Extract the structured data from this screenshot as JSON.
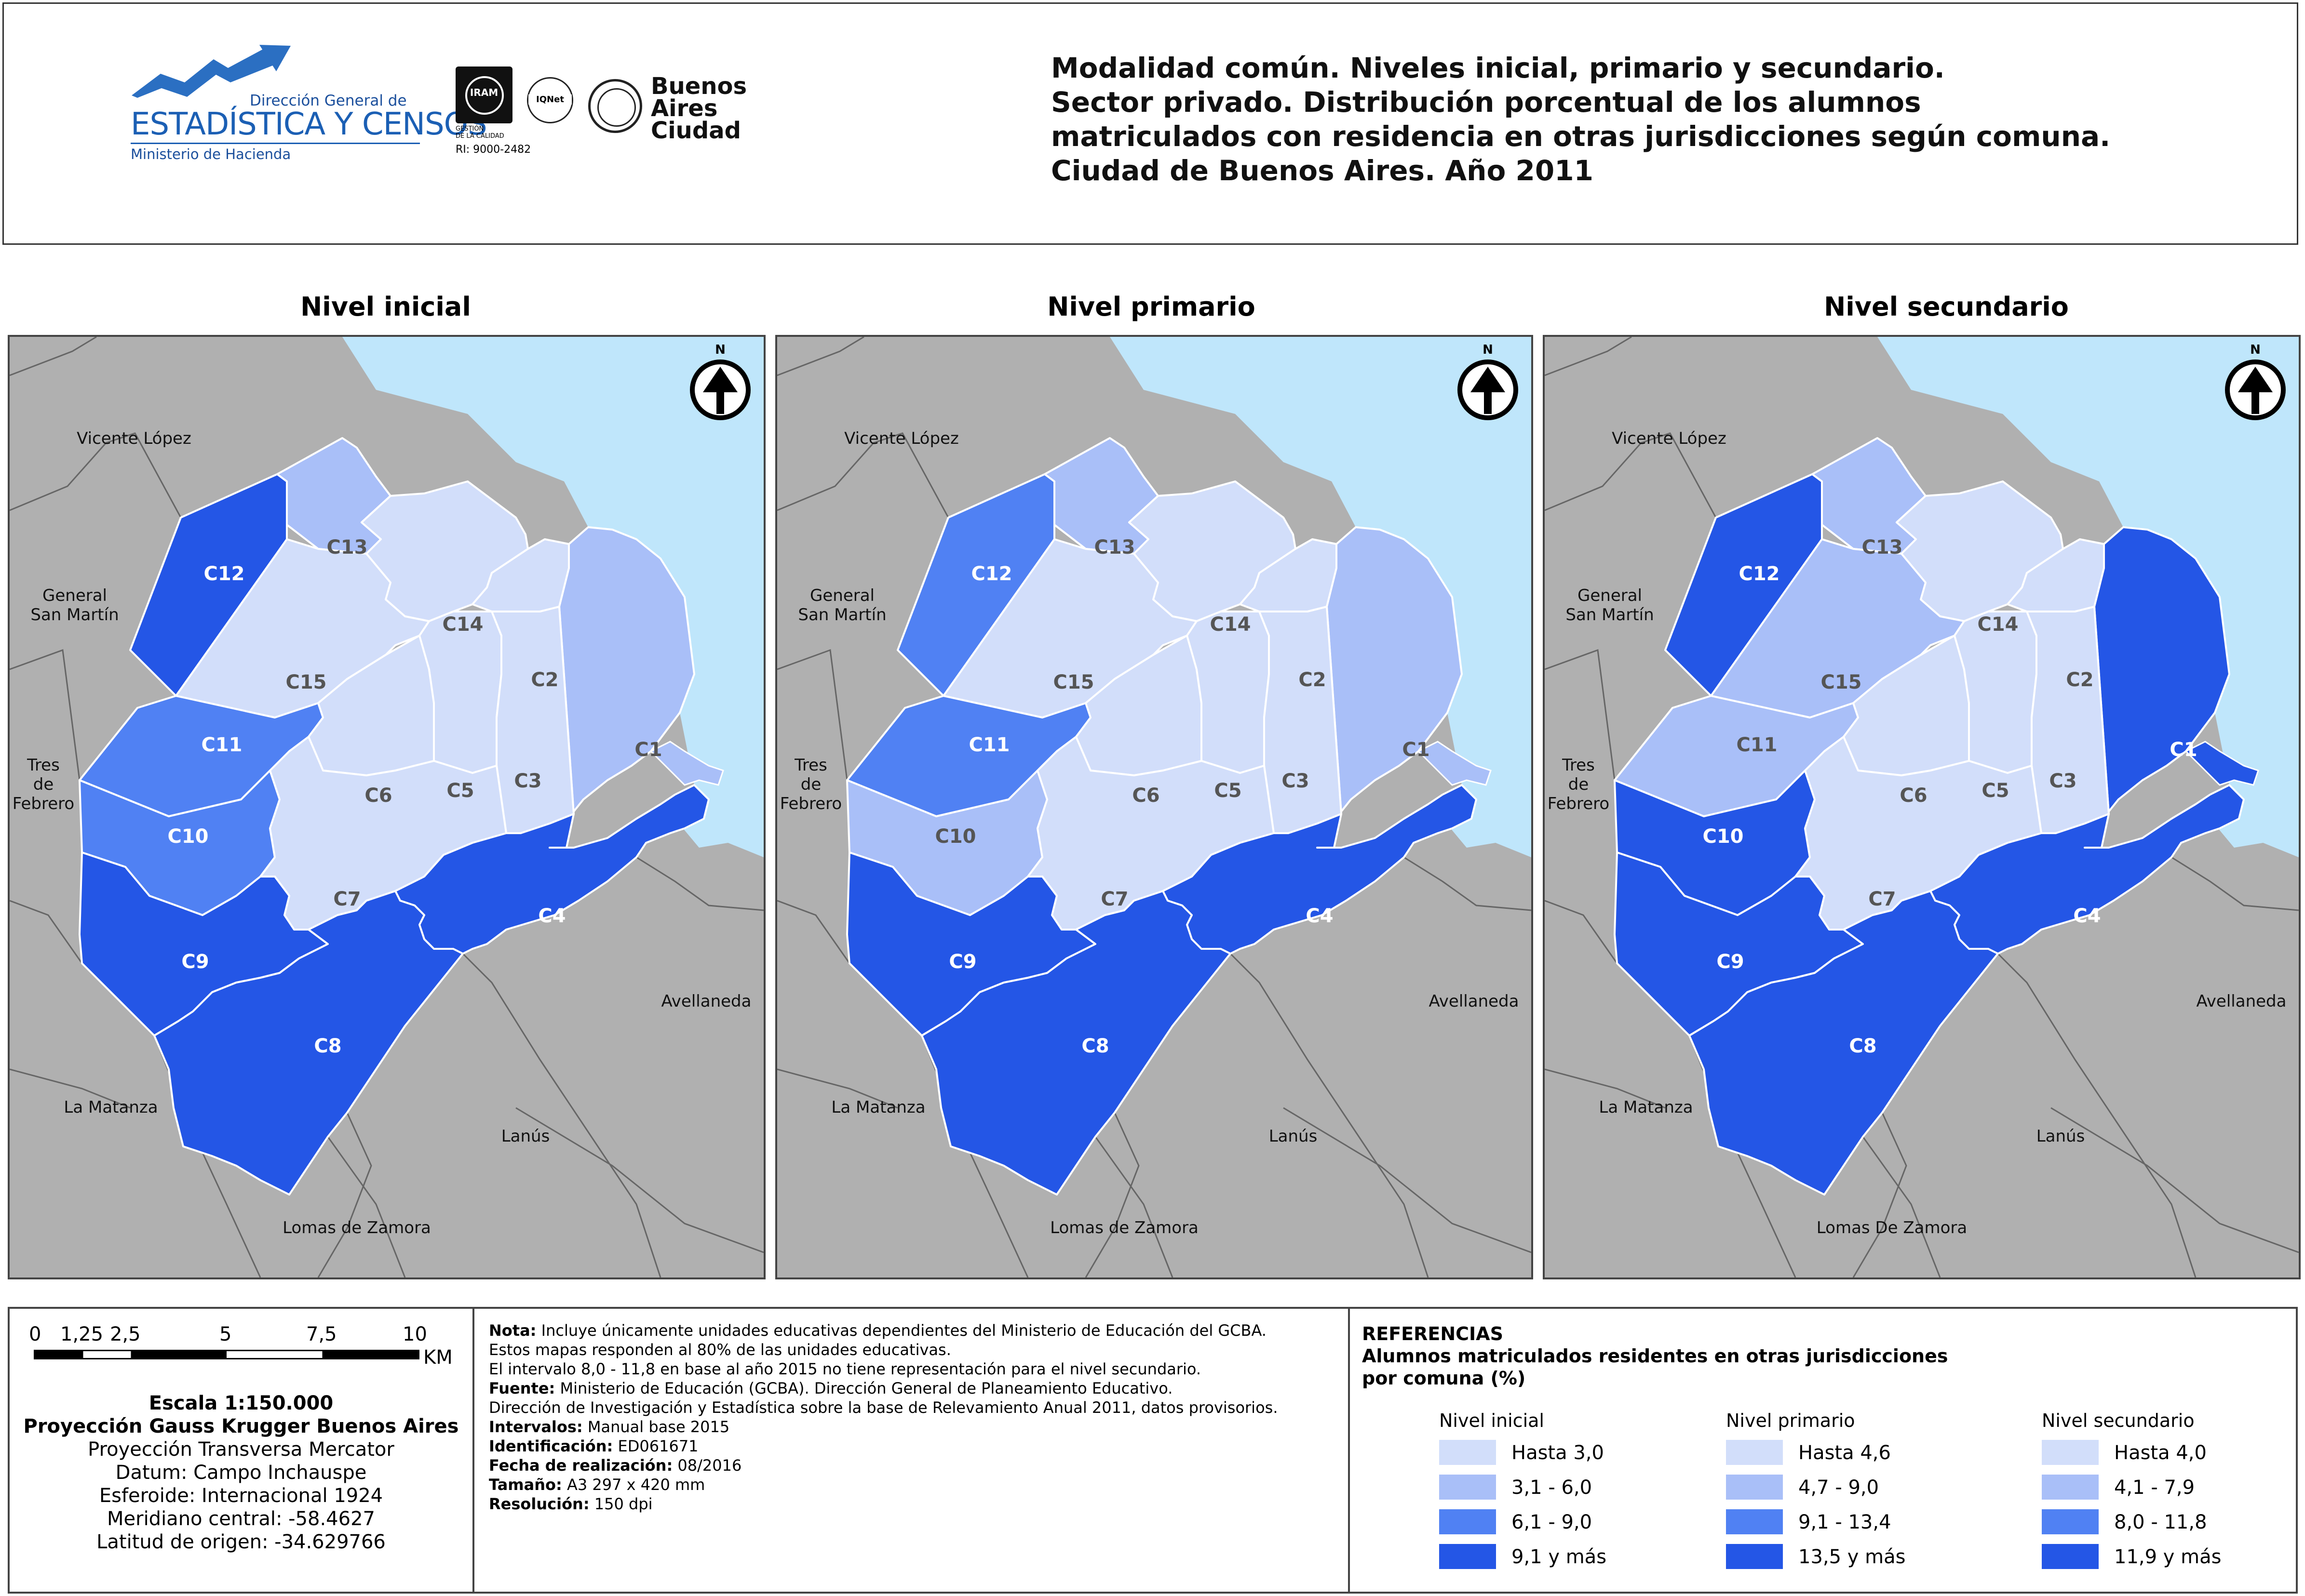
{
  "header": {
    "logo_dgec": {
      "line1": "Dirección General de",
      "line2": "ESTADÍSTICA Y CENSOS",
      "line3": "Ministerio de Hacienda"
    },
    "logo_iram": {
      "name": "IRAM",
      "sub1": "GESTIÓN",
      "sub2": "DE LA CALIDAD",
      "cert": "RI: 9000-2482",
      "iqnet": "IQNet"
    },
    "logo_baires": {
      "line1": "Buenos",
      "line2": "Aires",
      "line3": "Ciudad"
    },
    "title_lines": [
      "Modalidad común. Niveles inicial, primario y secundario.",
      "Sector privado. Distribución porcentual de los alumnos",
      "matriculados con residencia en otras jurisdicciones según comuna.",
      "Ciudad de Buenos Aires. Año 2011"
    ]
  },
  "colors": {
    "class1": "#d2defa",
    "class2": "#a9bff8",
    "class3": "#5081f3",
    "class4": "#2456e6",
    "water": "#bfe6fb",
    "outside": "#b0b0b0"
  },
  "maps": [
    {
      "title": "Nivel inicial",
      "north": "N",
      "neighbors": {
        "vicente_lopez": "Vicente López",
        "san_martin_1": "General",
        "san_martin_2": "San Martín",
        "tres_1": "Tres",
        "tres_2": "de",
        "tres_3": "Febrero",
        "la_matanza": "La Matanza",
        "avellaneda": "Avellaneda",
        "lanus": "Lanús",
        "lomas": "Lomas de Zamora"
      },
      "comunas": {
        "C1": 2,
        "C2": 1,
        "C3": 1,
        "C4": 4,
        "C5": 1,
        "C6": 1,
        "C7": 1,
        "C8": 4,
        "C9": 4,
        "C10": 3,
        "C11": 3,
        "C12": 4,
        "C13": 2,
        "C14": 1,
        "C15": 1
      }
    },
    {
      "title": "Nivel primario",
      "north": "N",
      "neighbors": {
        "vicente_lopez": "Vicente López",
        "san_martin_1": "General",
        "san_martin_2": "San Martín",
        "tres_1": "Tres",
        "tres_2": "de",
        "tres_3": "Febrero",
        "la_matanza": "La Matanza",
        "avellaneda": "Avellaneda",
        "lanus": "Lanús",
        "lomas": "Lomas de Zamora"
      },
      "comunas": {
        "C1": 2,
        "C2": 1,
        "C3": 1,
        "C4": 4,
        "C5": 1,
        "C6": 1,
        "C7": 1,
        "C8": 4,
        "C9": 4,
        "C10": 2,
        "C11": 3,
        "C12": 3,
        "C13": 2,
        "C14": 1,
        "C15": 1
      }
    },
    {
      "title": "Nivel secundario",
      "north": "N",
      "neighbors": {
        "vicente_lopez": "Vicente López",
        "san_martin_1": "General",
        "san_martin_2": "San Martín",
        "tres_1": "Tres",
        "tres_2": "de",
        "tres_3": "Febrero",
        "la_matanza": "La Matanza",
        "avellaneda": "Avellaneda",
        "lanus": "Lanús",
        "lomas": "Lomas De Zamora"
      },
      "comunas": {
        "C1": 4,
        "C2": 1,
        "C3": 1,
        "C4": 4,
        "C5": 1,
        "C6": 1,
        "C7": 1,
        "C8": 4,
        "C9": 4,
        "C10": 4,
        "C11": 2,
        "C12": 4,
        "C13": 2,
        "C14": 1,
        "C15": 2
      }
    }
  ],
  "scale": {
    "ticks": [
      "0",
      "1,25",
      "2,5",
      "5",
      "7,5",
      "10"
    ],
    "unit": "KM",
    "lines": [
      "Escala 1:150.000",
      "Proyección Gauss Krugger Buenos Aires",
      "Proyección Transversa Mercator",
      "Datum: Campo Inchauspe",
      "Esferoide: Internacional 1924",
      "Meridiano central: -58.4627",
      "Latitud de origen: -34.629766"
    ]
  },
  "notes": [
    {
      "label": "Nota:",
      "text": " Incluye únicamente unidades educativas dependientes del Ministerio de Educación del GCBA."
    },
    {
      "label": "",
      "text": "Estos mapas responden al 80% de las unidades educativas."
    },
    {
      "label": "",
      "text": "El intervalo 8,0 - 11,8 en base al año 2015 no tiene representación para el nivel secundario."
    },
    {
      "label": "Fuente:",
      "text": " Ministerio de Educación (GCBA). Dirección General de Planeamiento Educativo."
    },
    {
      "label": "",
      "text": "Dirección de Investigación y Estadística sobre la base de Relevamiento Anual 2011, datos provisorios."
    },
    {
      "label": "Intervalos:",
      "text": " Manual base 2015"
    },
    {
      "label": "Identificación:",
      "text": " ED061671"
    },
    {
      "label": "Fecha de realización:",
      "text": " 08/2016"
    },
    {
      "label": "Tamaño:",
      "text": " A3 297 x 420 mm"
    },
    {
      "label": "Resolución:",
      "text": " 150 dpi"
    }
  ],
  "legend": {
    "heading": "REFERENCIAS",
    "subtitle1": "Alumnos matriculados residentes en otras jurisdicciones",
    "subtitle2": "por comuna (%)",
    "columns": [
      {
        "title": "Nivel inicial",
        "items": [
          "Hasta 3,0",
          "3,1 - 6,0",
          "6,1 - 9,0",
          "9,1 y más"
        ]
      },
      {
        "title": "Nivel primario",
        "items": [
          "Hasta 4,6",
          "4,7 - 9,0",
          "9,1 - 13,4",
          "13,5 y más"
        ]
      },
      {
        "title": "Nivel secundario",
        "items": [
          "Hasta 4,0",
          "4,1 - 7,9",
          "8,0 - 11,8",
          "11,9 y más"
        ]
      }
    ]
  }
}
